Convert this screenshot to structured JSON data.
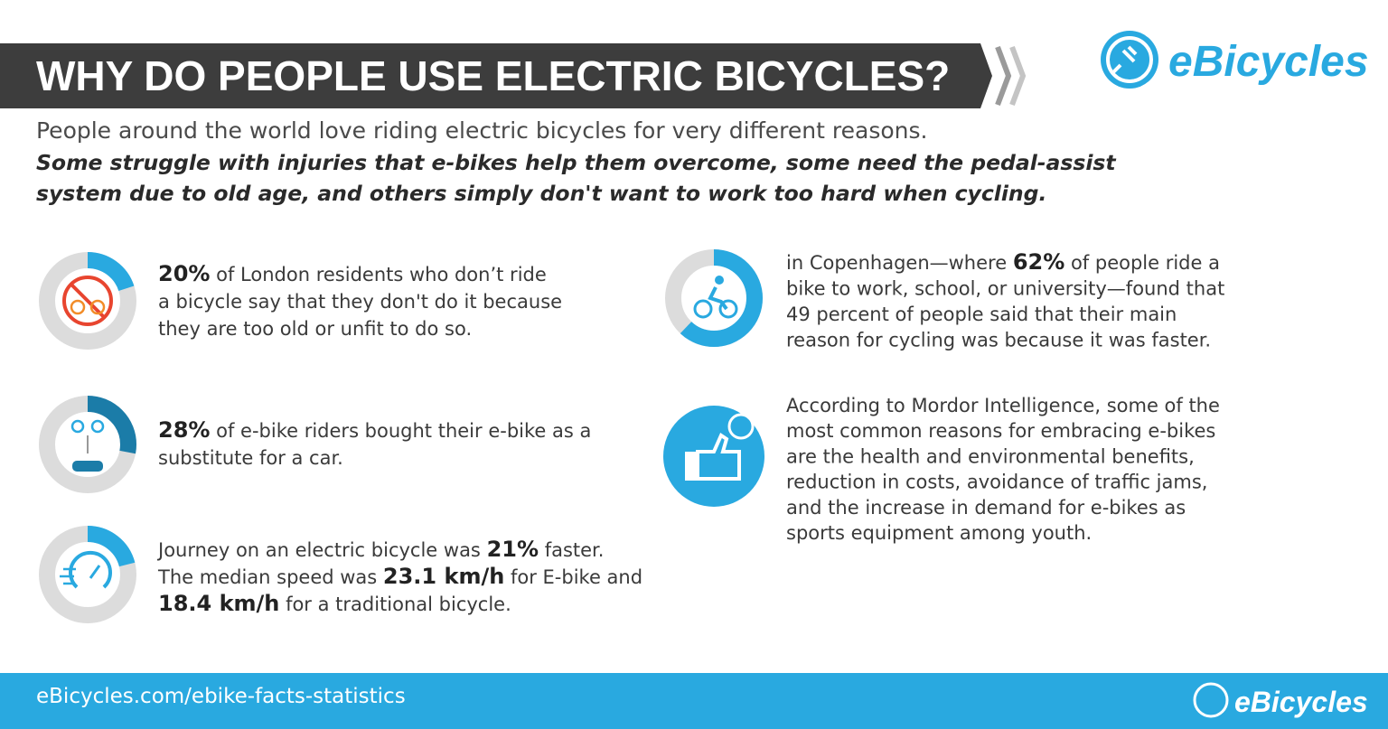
{
  "header": {
    "title": "WHY DO PEOPLE USE ELECTRIC BICYCLES?",
    "logo": "eBicycles"
  },
  "intro": {
    "lead": "People around the world love riding electric bicycles for very different reasons.",
    "emphasis_lines": [
      "Some struggle with injuries that e-bikes help them overcome, some need the pedal-assist",
      "system due to old age, and others simply don't want to work too hard when cycling."
    ]
  },
  "stats": [
    {
      "value": 20,
      "color": "#29a9e0",
      "lines": [
        [
          {
            "text": "20%",
            "bold": true
          },
          {
            "text": " of London residents who don’t ride"
          }
        ],
        [
          {
            "text": "a bicycle say that they don't do it because"
          }
        ],
        [
          {
            "text": "they are too old or unfit to do so."
          }
        ]
      ]
    },
    {
      "value": 28,
      "color": "#1b7ca8",
      "lines": [
        [
          {
            "text": "28%",
            "bold": true
          },
          {
            "text": " of e-bike riders bought their e-bike as a"
          }
        ],
        [
          {
            "text": "substitute for a car."
          }
        ]
      ]
    },
    {
      "value": 21,
      "color": "#29a9e0",
      "lines": [
        [
          {
            "text": "Journey on an electric bicycle was "
          },
          {
            "text": "21%",
            "bold": true
          },
          {
            "text": " faster."
          }
        ],
        [
          {
            "text": "The median speed was "
          },
          {
            "text": "23.1 km/h",
            "bold": true
          },
          {
            "text": " for E-bike and"
          }
        ],
        [
          {
            "text": "18.4 km/h",
            "bold": true
          },
          {
            "text": " for a traditional bicycle."
          }
        ]
      ]
    },
    {
      "value": 62,
      "color": "#29a9e0",
      "lines": [
        [
          {
            "text": "in Copenhagen—where "
          },
          {
            "text": "62%",
            "bold": true
          },
          {
            "text": " of people ride a"
          }
        ],
        [
          {
            "text": "bike to work, school, or university—found that"
          }
        ],
        [
          {
            "text": "49 percent of people said that their main"
          }
        ],
        [
          {
            "text": "reason for cycling was because it was faster."
          }
        ]
      ]
    }
  ],
  "note": {
    "lines": [
      [
        {
          "text": "According to Mordor Intelligence, some of the"
        }
      ],
      [
        {
          "text": "most common reasons for embracing e-bikes"
        }
      ],
      [
        {
          "text": "are the health and environmental benefits,"
        }
      ],
      [
        {
          "text": "reduction in costs, avoidance of traffic jams,"
        }
      ],
      [
        {
          "text": "and the increase in demand for e-bikes as"
        }
      ],
      [
        {
          "text": "sports equipment among youth."
        }
      ]
    ]
  },
  "footer": {
    "url": "eBicycles.com/ebike-facts-statistics",
    "logo": "eBicycles"
  }
}
